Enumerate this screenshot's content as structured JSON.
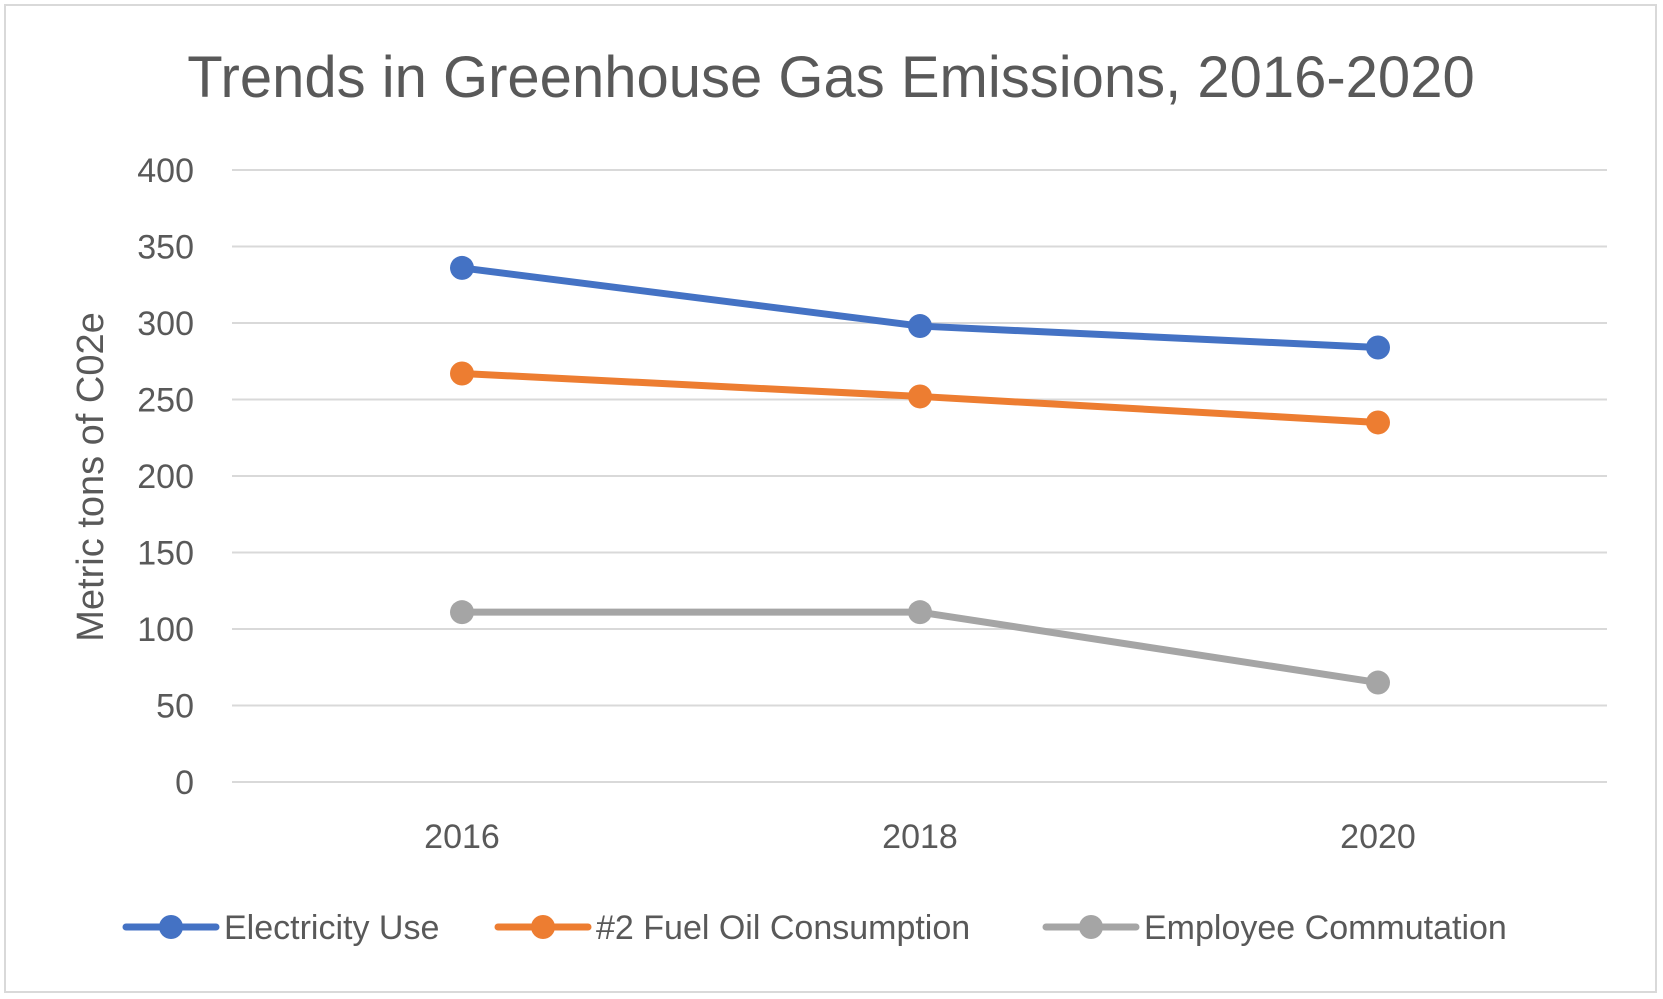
{
  "chart_data": {
    "type": "line",
    "title": "Trends in Greenhouse Gas Emissions, 2016-2020",
    "xlabel": "",
    "ylabel": "Metric tons of C02e",
    "categories": [
      "2016",
      "2018",
      "2020"
    ],
    "ylim": [
      0,
      400
    ],
    "yticks": [
      0,
      50,
      100,
      150,
      200,
      250,
      300,
      350,
      400
    ],
    "grid": true,
    "legend_position": "bottom",
    "series": [
      {
        "name": "Electricity Use",
        "color": "#4472c4",
        "values": [
          336,
          298,
          284
        ]
      },
      {
        "name": "#2 Fuel Oil Consumption",
        "color": "#ed7d31",
        "values": [
          267,
          252,
          235
        ]
      },
      {
        "name": "Employee Commutation",
        "color": "#a5a5a5",
        "values": [
          111,
          111,
          65
        ]
      }
    ]
  }
}
